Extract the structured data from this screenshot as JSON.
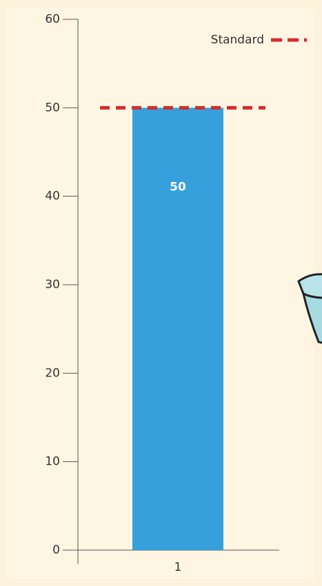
{
  "chart_data": {
    "type": "bar",
    "categories": [
      "1"
    ],
    "values": [
      50
    ],
    "color": "#35a0dc",
    "ylim": [
      0,
      60
    ],
    "yticks": [
      0,
      10,
      20,
      30,
      40,
      50,
      60
    ],
    "reference_line": {
      "name": "Standard",
      "value": 50,
      "color": "#d62a2a"
    }
  }
}
